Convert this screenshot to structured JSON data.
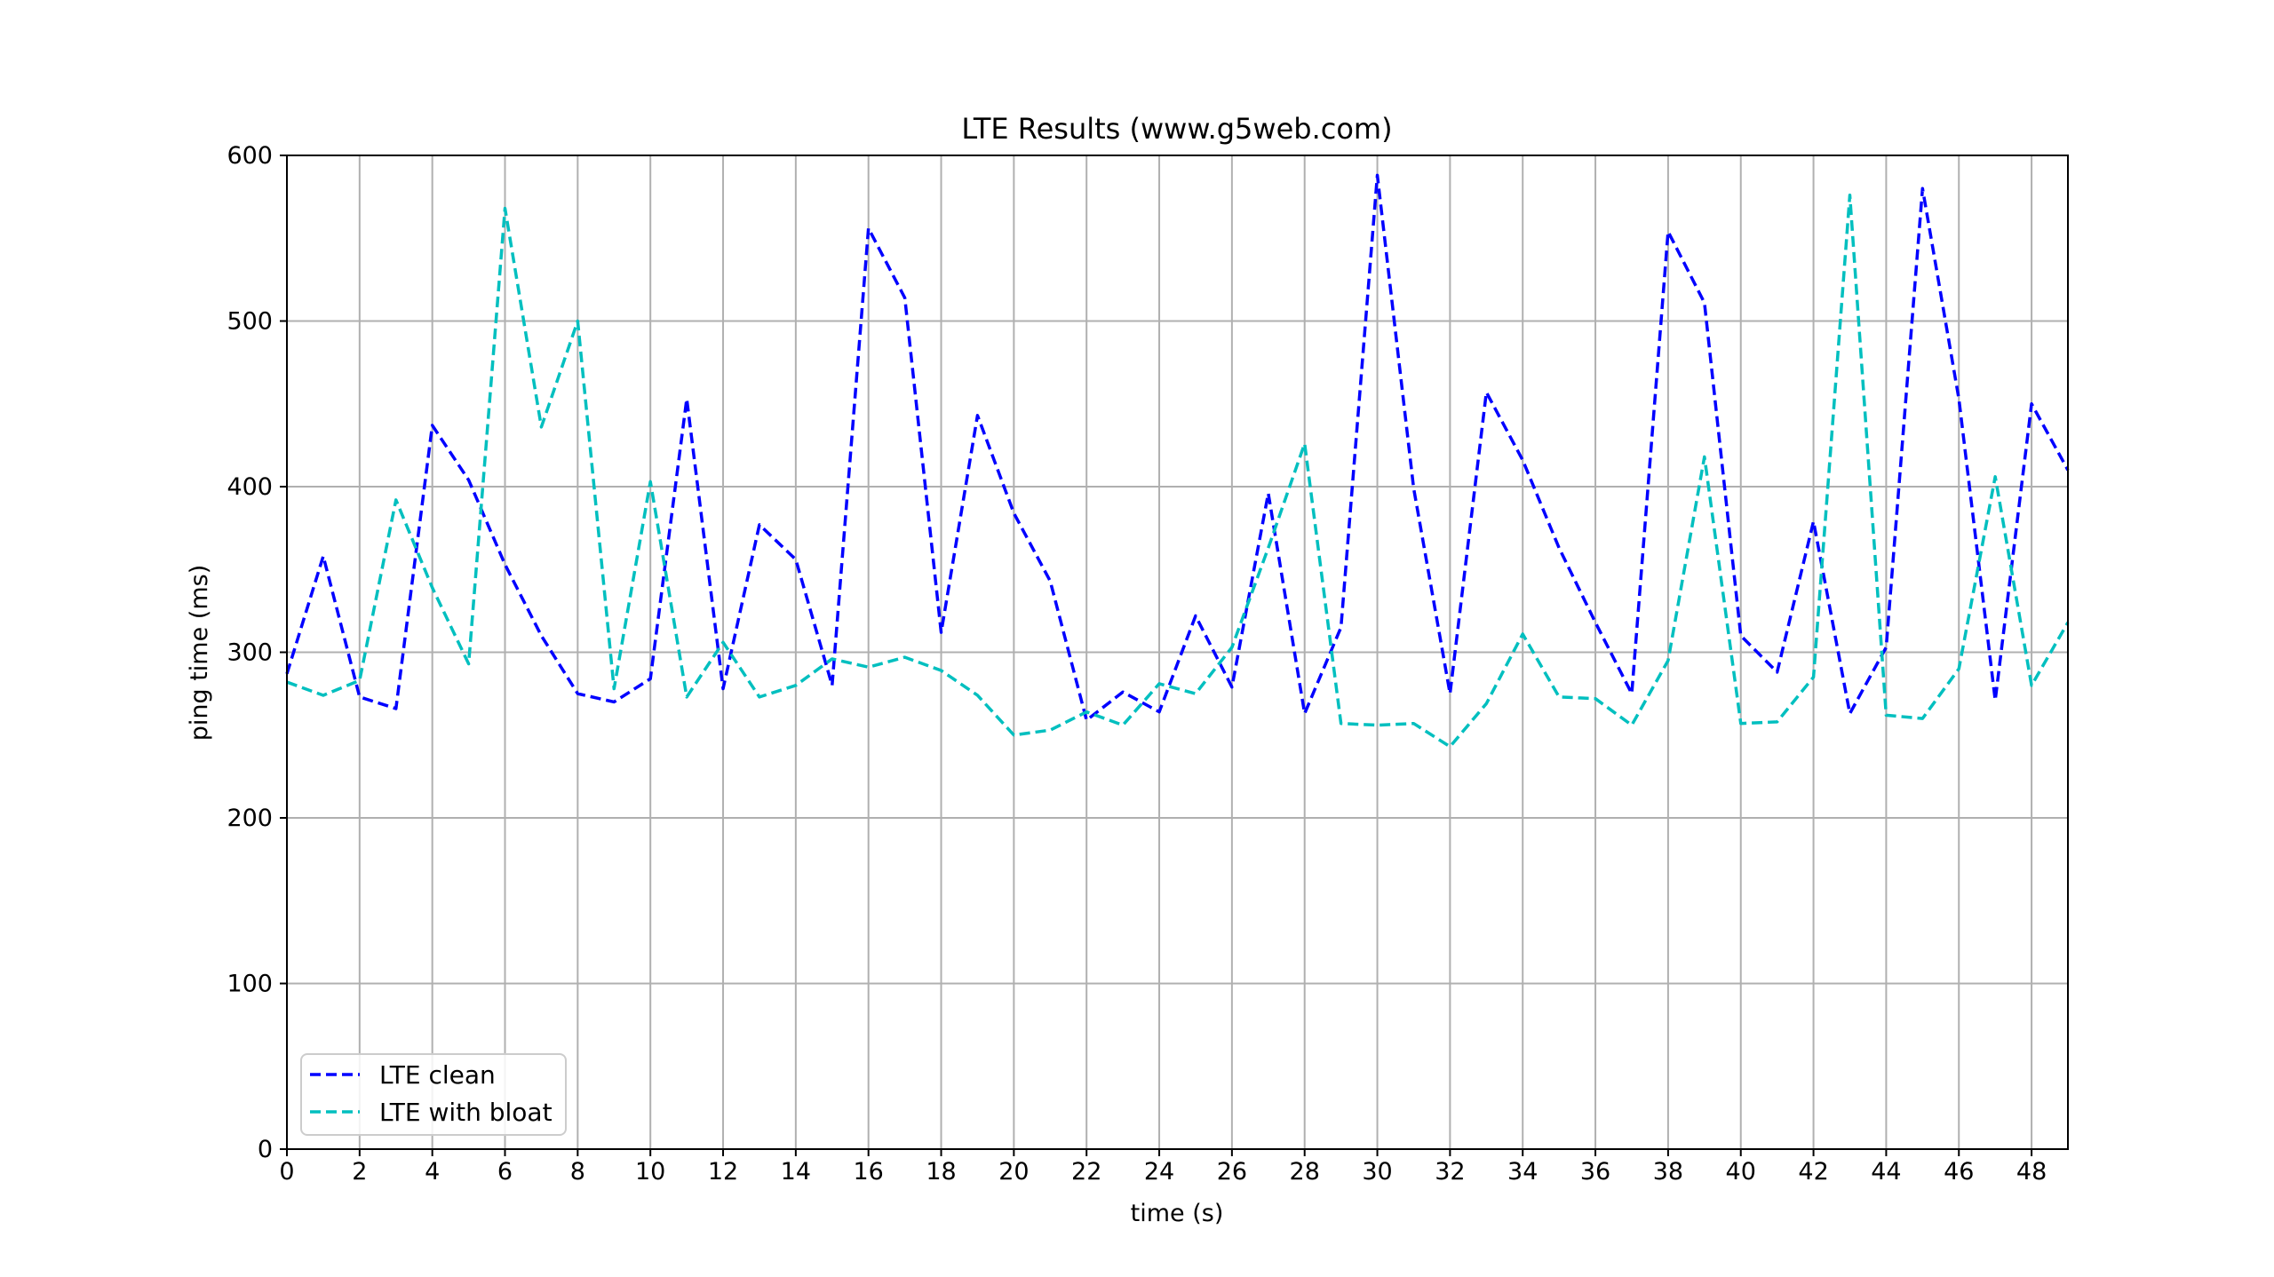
{
  "chart_data": {
    "type": "line",
    "title": "LTE Results (www.g5web.com)",
    "xlabel": "time (s)",
    "ylabel": "ping time (ms)",
    "xlim": [
      0,
      49
    ],
    "ylim": [
      0,
      600
    ],
    "x_ticks": [
      0,
      2,
      4,
      6,
      8,
      10,
      12,
      14,
      16,
      18,
      20,
      22,
      24,
      26,
      28,
      30,
      32,
      34,
      36,
      38,
      40,
      42,
      44,
      46,
      48
    ],
    "y_ticks": [
      0,
      100,
      200,
      300,
      400,
      500,
      600
    ],
    "grid": true,
    "legend_position": "lower-left",
    "x": [
      0,
      1,
      2,
      3,
      4,
      5,
      6,
      7,
      8,
      9,
      10,
      11,
      12,
      13,
      14,
      15,
      16,
      17,
      18,
      19,
      20,
      21,
      22,
      23,
      24,
      25,
      26,
      27,
      28,
      29,
      30,
      31,
      32,
      33,
      34,
      35,
      36,
      37,
      38,
      39,
      40,
      41,
      42,
      43,
      44,
      45,
      46,
      47,
      48,
      49
    ],
    "series": [
      {
        "name": "LTE clean",
        "color": "#0000ff",
        "values": [
          287,
          358,
          273,
          266,
          437,
          404,
          353,
          310,
          275,
          270,
          284,
          453,
          278,
          377,
          356,
          280,
          556,
          514,
          312,
          443,
          384,
          343,
          259,
          276,
          264,
          322,
          279,
          396,
          263,
          315,
          588,
          399,
          275,
          457,
          416,
          363,
          318,
          275,
          554,
          511,
          310,
          288,
          379,
          263,
          303,
          580,
          453,
          271,
          450,
          410
        ]
      },
      {
        "name": "LTE with bloat",
        "color": "#00bfbf",
        "values": [
          282,
          274,
          283,
          392,
          339,
          293,
          568,
          436,
          500,
          278,
          403,
          273,
          306,
          273,
          280,
          296,
          291,
          297,
          289,
          274,
          250,
          253,
          264,
          256,
          281,
          275,
          303,
          363,
          426,
          257,
          256,
          257,
          243,
          269,
          311,
          273,
          272,
          256,
          295,
          418,
          257,
          258,
          285,
          576,
          262,
          260,
          290,
          406,
          280,
          318
        ]
      }
    ]
  }
}
